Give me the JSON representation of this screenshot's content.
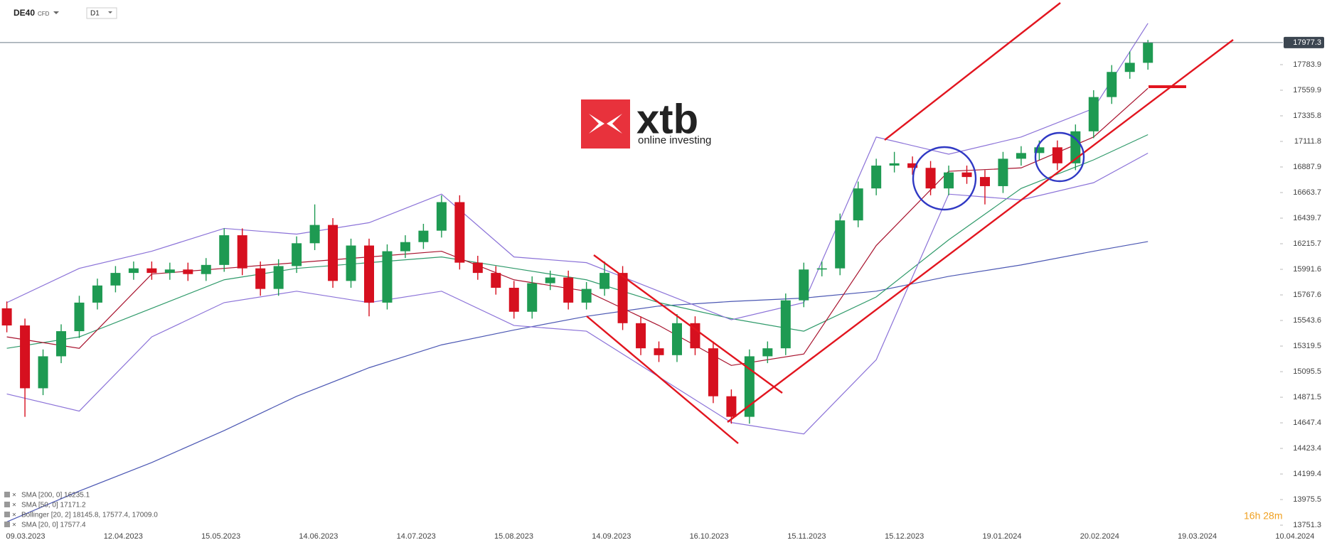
{
  "header": {
    "symbol": "DE40",
    "instrument": "CFD",
    "interval": "D1"
  },
  "logo": {
    "brand": "xtb",
    "tagline": "online investing"
  },
  "timer": "16h 28m",
  "chart_data": {
    "type": "candlestick",
    "current_price": 17977.3,
    "ylim": [
      13730,
      18350
    ],
    "yticks": [
      17783.9,
      17559.9,
      17335.8,
      17111.8,
      16887.9,
      16663.7,
      16439.7,
      16215.7,
      15991.6,
      15767.6,
      15543.6,
      15319.5,
      15095.5,
      14871.5,
      14647.4,
      14423.4,
      14199.4,
      13975.5,
      13751.3
    ],
    "xtick_labels": [
      "09.03.2023",
      "12.04.2023",
      "15.05.2023",
      "14.06.2023",
      "14.07.2023",
      "15.08.2023",
      "14.09.2023",
      "16.10.2023",
      "15.11.2023",
      "15.12.2023",
      "19.01.2024",
      "20.02.2024",
      "19.03.2024",
      "10.04.2024"
    ],
    "up_color": "#1e9a52",
    "down_color": "#d6101f",
    "open": [
      15650,
      15500,
      14950,
      15230,
      15450,
      15700,
      15850,
      15960,
      16000,
      15960,
      15990,
      15950,
      16030,
      16290,
      16000,
      15820,
      16020,
      16220,
      16380,
      15890,
      16200,
      15700,
      16150,
      16230,
      16330,
      16580,
      16050,
      15960,
      15830,
      15620,
      15870,
      15920,
      15700,
      15820,
      15960,
      15520,
      15300,
      15240,
      15520,
      15300,
      14880,
      14700,
      15230,
      15300,
      15720,
      15990,
      16000,
      16420,
      16700,
      16900,
      16920,
      16880,
      16700,
      16840,
      16800,
      16720,
      16960,
      17010,
      17060,
      16920,
      17200,
      17500,
      17720,
      17800
    ],
    "high": [
      15710,
      15560,
      15290,
      15510,
      15760,
      15910,
      16020,
      16060,
      16060,
      16050,
      16050,
      16090,
      16350,
      16350,
      16060,
      16080,
      16280,
      16560,
      16440,
      16260,
      16260,
      16210,
      16290,
      16390,
      16640,
      16640,
      16110,
      16020,
      15890,
      15930,
      15980,
      15980,
      15880,
      16060,
      16020,
      15580,
      15360,
      15600,
      15580,
      15360,
      14940,
      15290,
      15360,
      15780,
      16050,
      16060,
      16480,
      16760,
      16960,
      17020,
      16980,
      16940,
      16900,
      16900,
      16860,
      17020,
      17070,
      17120,
      17120,
      17260,
      17560,
      17780,
      17900,
      18000
    ],
    "low": [
      15440,
      14700,
      14890,
      15170,
      15390,
      15640,
      15790,
      15900,
      15900,
      15900,
      15890,
      15890,
      15970,
      15940,
      15760,
      15760,
      15960,
      16160,
      15830,
      15830,
      15580,
      15640,
      16090,
      16170,
      16270,
      15990,
      15900,
      15770,
      15560,
      15560,
      15810,
      15640,
      15640,
      15760,
      15460,
      15240,
      15180,
      15180,
      15240,
      14820,
      14640,
      14640,
      15170,
      15240,
      15660,
      15930,
      15940,
      16360,
      16640,
      16840,
      16820,
      16640,
      16640,
      16740,
      16560,
      16660,
      16900,
      16950,
      16860,
      16860,
      17140,
      17440,
      17660,
      17740
    ],
    "close": [
      15500,
      14950,
      15230,
      15450,
      15700,
      15850,
      15960,
      16000,
      15960,
      15990,
      15950,
      16030,
      16290,
      16000,
      15820,
      16020,
      16220,
      16380,
      15890,
      16200,
      15700,
      16150,
      16230,
      16330,
      16580,
      16050,
      15960,
      15830,
      15620,
      15870,
      15920,
      15700,
      15820,
      15960,
      15520,
      15300,
      15240,
      15520,
      15300,
      14880,
      14700,
      15230,
      15300,
      15720,
      15990,
      16000,
      16420,
      16700,
      16900,
      16920,
      16880,
      16700,
      16840,
      16800,
      16720,
      16960,
      17010,
      17060,
      16920,
      17200,
      17500,
      17720,
      17800,
      17977
    ],
    "indicator_x": [
      0,
      4,
      8,
      12,
      16,
      20,
      24,
      28,
      32,
      36,
      40,
      44,
      48,
      52,
      56,
      60,
      63
    ],
    "indicators": [
      {
        "label": "SMA [200, 0] 16235.1",
        "color": "#4b57b3",
        "values": [
          13780,
          14050,
          14300,
          14580,
          14880,
          15130,
          15330,
          15460,
          15580,
          15670,
          15710,
          15740,
          15800,
          15930,
          16030,
          16150,
          16235
        ]
      },
      {
        "label": "SMA [50, 0] 17171.2",
        "color": "#2f9a6a",
        "values": [
          15300,
          15400,
          15650,
          15900,
          16000,
          16050,
          16100,
          16000,
          15900,
          15700,
          15560,
          15450,
          15750,
          16250,
          16700,
          16950,
          17171
        ]
      },
      {
        "label": "Bollinger [20, 2] 18145.8, 17577.4, 17009.0",
        "color": "#8b72d8",
        "upper": [
          15700,
          16000,
          16150,
          16350,
          16300,
          16400,
          16650,
          16100,
          16050,
          15800,
          15550,
          15700,
          17150,
          17000,
          17150,
          17400,
          18146
        ],
        "lower": [
          14900,
          14750,
          15400,
          15700,
          15800,
          15700,
          15800,
          15500,
          15450,
          15050,
          14650,
          14550,
          15200,
          16650,
          16600,
          16750,
          17009
        ]
      },
      {
        "label": "SMA [20, 0] 17577.4",
        "color": "#a8132e",
        "values": [
          15400,
          15300,
          15950,
          16000,
          16050,
          16100,
          16150,
          15900,
          15800,
          15500,
          15150,
          15250,
          16200,
          16850,
          16880,
          17150,
          17577
        ]
      }
    ]
  }
}
